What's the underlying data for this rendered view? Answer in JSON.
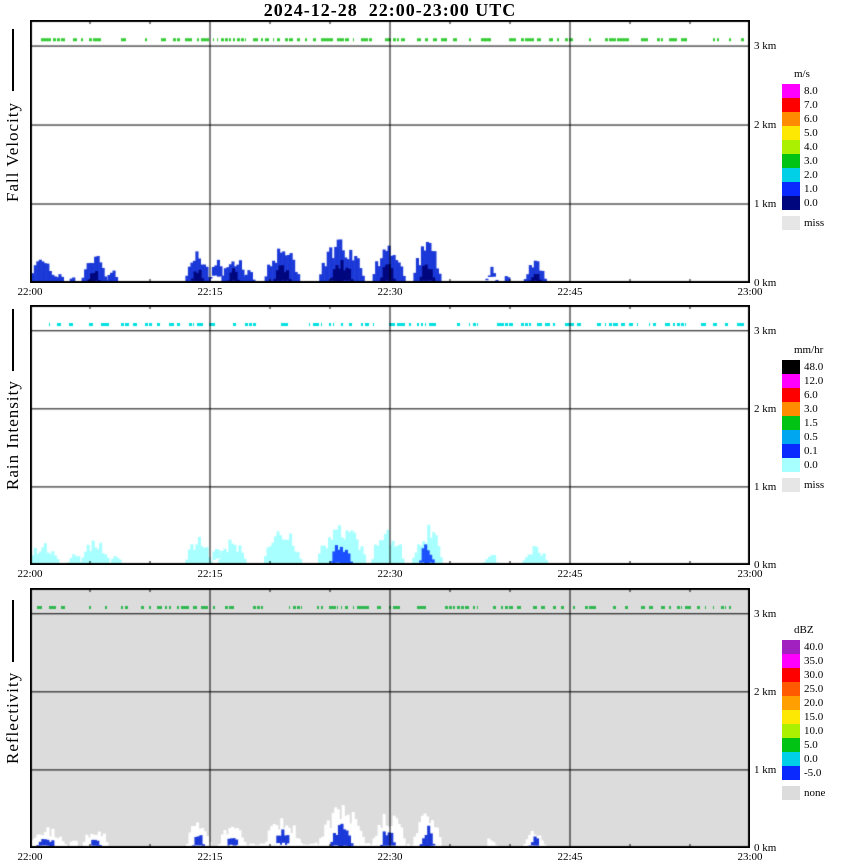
{
  "title": "2024-12-28  22:00-23:00 UTC",
  "chart_data": [
    {
      "type": "heatmap",
      "ylabel": "Fall Velocity",
      "x_tick_labels": [
        "22:00",
        "22:15",
        "22:30",
        "22:45",
        "23:00"
      ],
      "y_tick_labels": [
        "0 km",
        "1 km",
        "2 km",
        "3 km"
      ],
      "xlim_minutes": [
        0,
        60
      ],
      "ylim_km": [
        0,
        3.33
      ],
      "grid": "on",
      "background": "#ffffff",
      "patch_color": "#1b39d8",
      "patch_core_color": "#00077e",
      "noise_line": {
        "height_km": 3.08,
        "color": "#33cc33",
        "density": 0.5
      },
      "patches": [
        {
          "t": 0.9,
          "w": 2.0,
          "top": 0.3
        },
        {
          "t": 2.3,
          "w": 0.7,
          "top": 0.12
        },
        {
          "t": 3.4,
          "w": 0.6,
          "top": 0.1
        },
        {
          "t": 5.2,
          "w": 1.8,
          "top": 0.36,
          "core": true
        },
        {
          "t": 6.7,
          "w": 0.9,
          "top": 0.16
        },
        {
          "t": 13.8,
          "w": 1.7,
          "top": 0.4,
          "core": true
        },
        {
          "t": 15.4,
          "w": 0.9,
          "top": 0.3,
          "bottom": 0.1
        },
        {
          "t": 16.8,
          "w": 1.7,
          "top": 0.34,
          "core": true
        },
        {
          "t": 18.1,
          "w": 0.8,
          "top": 0.16
        },
        {
          "t": 20.9,
          "w": 2.7,
          "top": 0.46,
          "core": true
        },
        {
          "t": 25.8,
          "w": 3.4,
          "top": 0.54,
          "core": true
        },
        {
          "t": 29.7,
          "w": 2.3,
          "top": 0.5,
          "core": true
        },
        {
          "t": 32.9,
          "w": 1.9,
          "top": 0.52,
          "core": true
        },
        {
          "t": 38.3,
          "w": 0.7,
          "top": 0.2,
          "bottom": 0.08
        },
        {
          "t": 39.6,
          "w": 0.5,
          "top": 0.1
        },
        {
          "t": 41.9,
          "w": 1.5,
          "top": 0.28,
          "core": true
        }
      ],
      "colorbar": {
        "title": "m/s",
        "labels": [
          "8.0",
          "7.0",
          "6.0",
          "5.0",
          "4.0",
          "3.0",
          "2.0",
          "1.0",
          "0.0"
        ],
        "colors": [
          "#ff00ff",
          "#fe0000",
          "#ff8c00",
          "#fce803",
          "#aaf000",
          "#00c314",
          "#00cfe8",
          "#0a29ff",
          "#00077e"
        ],
        "missing_label": "miss",
        "missing_color": "#e6e6e6"
      }
    },
    {
      "type": "heatmap",
      "ylabel": "Rain Intensity",
      "x_tick_labels": [
        "22:00",
        "22:15",
        "22:30",
        "22:45",
        "23:00"
      ],
      "y_tick_labels": [
        "0 km",
        "1 km",
        "2 km",
        "3 km"
      ],
      "xlim_minutes": [
        0,
        60
      ],
      "ylim_km": [
        0,
        3.33
      ],
      "grid": "on",
      "background": "#ffffff",
      "patch_color": "#a8ffff",
      "patch_core_color": "#1b50ff",
      "noise_line": {
        "height_km": 3.08,
        "color": "#00e0e0",
        "density": 0.45
      },
      "patches": [
        {
          "t": 1.0,
          "w": 2.2,
          "top": 0.28
        },
        {
          "t": 3.6,
          "w": 1.0,
          "top": 0.14
        },
        {
          "t": 5.3,
          "w": 2.0,
          "top": 0.34
        },
        {
          "t": 7.0,
          "w": 0.9,
          "top": 0.14
        },
        {
          "t": 13.8,
          "w": 1.7,
          "top": 0.36
        },
        {
          "t": 15.5,
          "w": 1.0,
          "top": 0.24,
          "bottom": 0.08
        },
        {
          "t": 16.7,
          "w": 2.0,
          "top": 0.32
        },
        {
          "t": 20.9,
          "w": 2.8,
          "top": 0.44
        },
        {
          "t": 25.8,
          "w": 3.6,
          "top": 0.52,
          "core": true
        },
        {
          "t": 29.7,
          "w": 2.5,
          "top": 0.46
        },
        {
          "t": 32.9,
          "w": 2.1,
          "top": 0.5,
          "core": true
        },
        {
          "t": 38.2,
          "w": 0.9,
          "top": 0.16
        },
        {
          "t": 41.9,
          "w": 1.7,
          "top": 0.26
        }
      ],
      "colorbar": {
        "title": "mm/hr",
        "labels": [
          "48.0",
          "12.0",
          "6.0",
          "3.0",
          "1.5",
          "0.5",
          "0.1",
          "0.0"
        ],
        "colors": [
          "#000000",
          "#ff00ff",
          "#fe0000",
          "#ff8c00",
          "#00c314",
          "#00a6f0",
          "#0a29ff",
          "#a8ffff"
        ],
        "missing_label": "miss",
        "missing_color": "#e6e6e6"
      }
    },
    {
      "type": "heatmap",
      "ylabel": "Reflectivity",
      "x_tick_labels": [
        "22:00",
        "22:15",
        "22:30",
        "22:45",
        "23:00"
      ],
      "y_tick_labels": [
        "0 km",
        "1 km",
        "2 km",
        "3 km"
      ],
      "xlim_minutes": [
        0,
        60
      ],
      "ylim_km": [
        0,
        3.33
      ],
      "grid": "on",
      "background": "#dcdcdc",
      "patch_color": "#ffffff",
      "patch_core_color": "#1b39d8",
      "noise_line": {
        "height_km": 3.08,
        "color": "#30b850",
        "density": 0.45
      },
      "patches": [
        {
          "t": 1.2,
          "w": 3.0,
          "top": 0.26,
          "core": true
        },
        {
          "t": 3.5,
          "w": 0.8,
          "top": 0.12
        },
        {
          "t": 5.3,
          "w": 1.8,
          "top": 0.3,
          "core": true
        },
        {
          "t": 13.9,
          "w": 1.8,
          "top": 0.34,
          "core": true
        },
        {
          "t": 16.7,
          "w": 2.0,
          "top": 0.3,
          "core": true
        },
        {
          "t": 20.9,
          "w": 2.6,
          "top": 0.42,
          "core": true
        },
        {
          "t": 24.5,
          "w": 22.0,
          "top": 0.07
        },
        {
          "t": 25.8,
          "w": 3.4,
          "top": 0.54,
          "core": true
        },
        {
          "t": 29.7,
          "w": 2.3,
          "top": 0.48,
          "core": true
        },
        {
          "t": 32.9,
          "w": 1.9,
          "top": 0.52,
          "core": true
        },
        {
          "t": 38.3,
          "w": 0.8,
          "top": 0.14
        },
        {
          "t": 41.9,
          "w": 1.6,
          "top": 0.26,
          "core": true
        }
      ],
      "colorbar": {
        "title": "dBZ",
        "labels": [
          "40.0",
          "35.0",
          "30.0",
          "25.0",
          "20.0",
          "15.0",
          "10.0",
          "5.0",
          "0.0",
          "-5.0"
        ],
        "colors": [
          "#a020c0",
          "#ff00ff",
          "#fe0000",
          "#ff5a00",
          "#ffa000",
          "#fce803",
          "#aaf000",
          "#00c314",
          "#00cfe8",
          "#0a29ff"
        ],
        "missing_label": "none",
        "missing_color": "#dcdcdc"
      }
    }
  ]
}
